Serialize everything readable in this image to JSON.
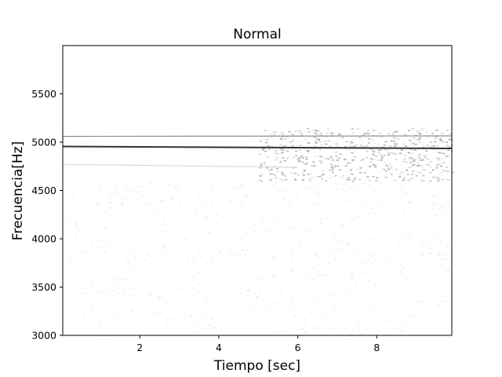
{
  "chart_data": {
    "type": "heatmap",
    "title": "Normal",
    "xlabel": "Tiempo [sec]",
    "ylabel": "Frecuencia[Hz]",
    "xlim": [
      0.05,
      9.9
    ],
    "ylim": [
      3000,
      6000
    ],
    "xticks": [
      2,
      4,
      6,
      8
    ],
    "xtick_labels": [
      "2",
      "4",
      "6",
      "8"
    ],
    "yticks": [
      3000,
      3500,
      4000,
      4500,
      5000,
      5500
    ],
    "ytick_labels": [
      "3000",
      "3500",
      "4000",
      "4500",
      "5000",
      "5500"
    ],
    "colormap": "grayscale (white = low, black = high)",
    "grid": false,
    "legend": "none",
    "bands": [
      {
        "frequency_start": 5060,
        "frequency_end": 5065,
        "time_start": 0.05,
        "time_end": 9.9,
        "intensity": 0.45
      },
      {
        "frequency_start": 4955,
        "frequency_end": 4935,
        "time_start": 0.05,
        "time_end": 9.9,
        "intensity": 0.8
      },
      {
        "frequency_start": 4770,
        "frequency_end": 4740,
        "time_start": 0.05,
        "time_end": 6.0,
        "intensity": 0.15
      }
    ],
    "noise_regions": [
      {
        "time_range": [
          5.0,
          9.9
        ],
        "frequency_range": [
          4600,
          5150
        ],
        "intensity": 0.35
      },
      {
        "time_range": [
          0.05,
          9.9
        ],
        "frequency_range": [
          3000,
          4600
        ],
        "intensity": 0.08
      }
    ]
  }
}
